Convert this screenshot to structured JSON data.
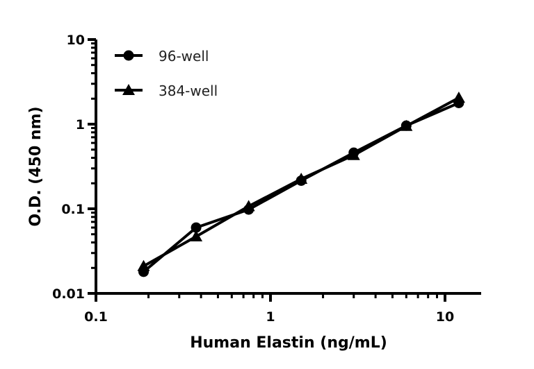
{
  "chart_data": {
    "type": "line",
    "title": "",
    "xlabel": "Human Elastin (ng/mL)",
    "ylabel": "O.D. (450 nm)",
    "xscale": "log",
    "yscale": "log",
    "xlim": [
      0.1,
      15
    ],
    "ylim": [
      0.01,
      10
    ],
    "x_ticks": [
      "0.1",
      "1",
      "10"
    ],
    "y_ticks": [
      "0.01",
      "0.1",
      "1",
      "10"
    ],
    "grid": false,
    "legend_position": "upper left",
    "x": [
      0.1875,
      0.375,
      0.75,
      1.5,
      3,
      6,
      12
    ],
    "series": [
      {
        "name": "96-well",
        "marker": "circle",
        "values": [
          0.018,
          0.06,
          0.098,
          0.215,
          0.46,
          0.96,
          1.78
        ]
      },
      {
        "name": "384-well",
        "marker": "triangle",
        "values": [
          0.021,
          0.047,
          0.107,
          0.225,
          0.43,
          0.95,
          2.05
        ]
      }
    ]
  },
  "legend": {
    "items": [
      {
        "label": "96-well"
      },
      {
        "label": "384-well"
      }
    ]
  },
  "axes": {
    "x_title": "Human Elastin (ng/mL)",
    "y_title": "O.D. (450 nm)",
    "x_tick_labels": [
      "0.1",
      "1",
      "10"
    ],
    "y_tick_labels": [
      "0.01",
      "0.1",
      "1",
      "10"
    ]
  }
}
